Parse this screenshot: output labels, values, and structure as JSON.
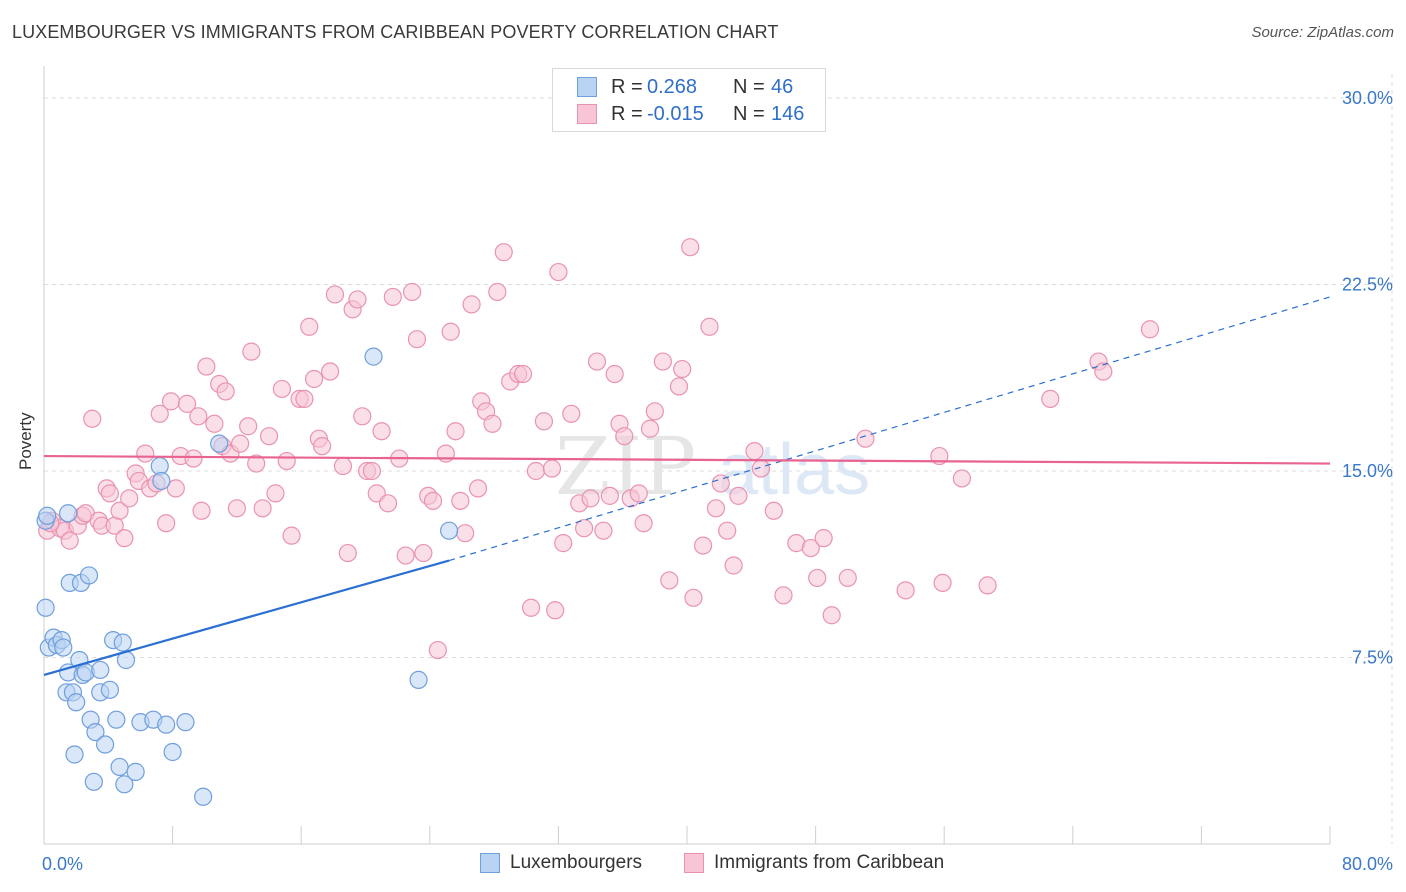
{
  "header": {
    "title": "LUXEMBOURGER VS IMMIGRANTS FROM CARIBBEAN POVERTY CORRELATION CHART",
    "source": "Source: ZipAtlas.com"
  },
  "legend": {
    "rows": [
      {
        "r_label": "R =",
        "r_value": "0.268",
        "n_label": "N =",
        "n_value": "46"
      },
      {
        "r_label": "R =",
        "r_value": "-0.015",
        "n_label": "N =",
        "n_value": "146"
      }
    ]
  },
  "colors": {
    "blue_fill": "#b9d3f3",
    "blue_stroke": "#6f9fdc",
    "blue_line": "#2a6fd1",
    "pink_fill": "#f7c5d5",
    "pink_stroke": "#e993b0",
    "pink_line": "#e8638f",
    "axis_text": "#3a78c8",
    "grid": "#dcdcdc"
  },
  "watermark": {
    "zip": "ZIP",
    "atlas": "atlas"
  },
  "chart_data": {
    "type": "scatter",
    "title": "LUXEMBOURGER VS IMMIGRANTS FROM CARIBBEAN POVERTY CORRELATION CHART",
    "xlabel": "",
    "ylabel": "Poverty",
    "xlim": [
      0,
      80
    ],
    "ylim": [
      0,
      30
    ],
    "x_tick_labels": [
      {
        "value": 0,
        "label": "0.0%"
      },
      {
        "value": 80,
        "label": "80.0%"
      }
    ],
    "y_tick_labels": [
      {
        "value": 7.5,
        "label": "7.5%"
      },
      {
        "value": 15,
        "label": "15.0%"
      },
      {
        "value": 22.5,
        "label": "22.5%"
      },
      {
        "value": 30,
        "label": "30.0%"
      }
    ],
    "series": [
      {
        "name": "Luxembourgers",
        "r": 0.268,
        "n": 46,
        "trend": {
          "x0": 0,
          "y0": 6.8,
          "x1": 25.2,
          "y1": 11.4,
          "dash_x1": 80,
          "dash_y1": 22.0
        },
        "points": [
          [
            0.1,
            13.0
          ],
          [
            0.3,
            7.9
          ],
          [
            0.6,
            8.3
          ],
          [
            0.8,
            8.0
          ],
          [
            1.1,
            8.2
          ],
          [
            1.2,
            7.9
          ],
          [
            1.4,
            6.1
          ],
          [
            1.5,
            6.9
          ],
          [
            1.5,
            13.3
          ],
          [
            1.6,
            10.5
          ],
          [
            1.8,
            6.1
          ],
          [
            1.9,
            3.6
          ],
          [
            2.0,
            5.7
          ],
          [
            2.2,
            7.4
          ],
          [
            2.3,
            10.5
          ],
          [
            2.4,
            6.8
          ],
          [
            2.6,
            6.9
          ],
          [
            2.8,
            10.8
          ],
          [
            2.9,
            5.0
          ],
          [
            3.1,
            2.5
          ],
          [
            3.2,
            4.5
          ],
          [
            3.5,
            7.0
          ],
          [
            3.5,
            6.1
          ],
          [
            3.8,
            4.0
          ],
          [
            4.1,
            6.2
          ],
          [
            4.3,
            8.2
          ],
          [
            4.5,
            5.0
          ],
          [
            4.7,
            3.1
          ],
          [
            4.9,
            8.1
          ],
          [
            5.0,
            2.4
          ],
          [
            5.1,
            7.4
          ],
          [
            5.7,
            2.9
          ],
          [
            6.0,
            4.9
          ],
          [
            6.8,
            5.0
          ],
          [
            7.2,
            15.2
          ],
          [
            7.3,
            14.6
          ],
          [
            7.6,
            4.8
          ],
          [
            8.0,
            3.7
          ],
          [
            8.8,
            4.9
          ],
          [
            9.9,
            1.9
          ],
          [
            10.9,
            16.1
          ],
          [
            20.5,
            19.6
          ],
          [
            23.3,
            6.6
          ],
          [
            25.2,
            12.6
          ],
          [
            0.1,
            9.5
          ],
          [
            0.2,
            13.2
          ]
        ]
      },
      {
        "name": "Immigrants from Caribbean",
        "r": -0.015,
        "n": 146,
        "trend": {
          "x0": 0,
          "y0": 15.6,
          "x1": 80,
          "y1": 15.3
        },
        "points": [
          [
            0.2,
            12.6
          ],
          [
            0.5,
            13.0
          ],
          [
            1.0,
            12.7
          ],
          [
            1.3,
            12.6
          ],
          [
            1.6,
            12.2
          ],
          [
            2.1,
            12.8
          ],
          [
            2.4,
            13.2
          ],
          [
            2.6,
            13.3
          ],
          [
            3.0,
            17.1
          ],
          [
            3.4,
            13.0
          ],
          [
            3.6,
            12.8
          ],
          [
            3.9,
            14.3
          ],
          [
            4.1,
            14.1
          ],
          [
            4.4,
            12.8
          ],
          [
            4.7,
            13.4
          ],
          [
            5.0,
            12.3
          ],
          [
            5.3,
            13.9
          ],
          [
            5.7,
            14.9
          ],
          [
            5.9,
            14.6
          ],
          [
            6.3,
            15.7
          ],
          [
            6.6,
            14.3
          ],
          [
            7.0,
            14.5
          ],
          [
            7.2,
            17.3
          ],
          [
            7.6,
            12.9
          ],
          [
            7.9,
            17.8
          ],
          [
            8.2,
            14.3
          ],
          [
            8.5,
            15.6
          ],
          [
            8.9,
            17.7
          ],
          [
            9.3,
            15.5
          ],
          [
            9.6,
            17.2
          ],
          [
            9.8,
            13.4
          ],
          [
            10.1,
            19.2
          ],
          [
            10.6,
            16.9
          ],
          [
            10.9,
            18.5
          ],
          [
            11.1,
            16.0
          ],
          [
            11.3,
            18.2
          ],
          [
            11.6,
            15.7
          ],
          [
            12.0,
            13.5
          ],
          [
            12.2,
            16.1
          ],
          [
            12.7,
            16.8
          ],
          [
            12.9,
            19.8
          ],
          [
            13.2,
            15.3
          ],
          [
            13.6,
            13.5
          ],
          [
            14.0,
            16.4
          ],
          [
            14.4,
            14.1
          ],
          [
            14.8,
            18.3
          ],
          [
            15.1,
            15.4
          ],
          [
            15.4,
            12.4
          ],
          [
            15.9,
            17.9
          ],
          [
            16.2,
            17.9
          ],
          [
            16.5,
            20.8
          ],
          [
            16.8,
            18.7
          ],
          [
            17.1,
            16.3
          ],
          [
            17.3,
            16.0
          ],
          [
            17.8,
            19.0
          ],
          [
            18.1,
            22.1
          ],
          [
            18.6,
            15.2
          ],
          [
            18.9,
            11.7
          ],
          [
            19.2,
            21.5
          ],
          [
            19.5,
            21.9
          ],
          [
            19.8,
            17.2
          ],
          [
            20.1,
            15.0
          ],
          [
            20.4,
            15.0
          ],
          [
            20.7,
            14.1
          ],
          [
            21.0,
            16.6
          ],
          [
            21.4,
            13.7
          ],
          [
            21.7,
            22.0
          ],
          [
            22.1,
            15.5
          ],
          [
            22.5,
            11.6
          ],
          [
            22.9,
            22.2
          ],
          [
            23.2,
            20.3
          ],
          [
            23.6,
            11.7
          ],
          [
            23.9,
            14.0
          ],
          [
            24.2,
            13.8
          ],
          [
            24.5,
            7.8
          ],
          [
            25.0,
            15.7
          ],
          [
            25.3,
            20.6
          ],
          [
            25.6,
            16.6
          ],
          [
            25.9,
            13.8
          ],
          [
            26.2,
            12.5
          ],
          [
            26.6,
            21.7
          ],
          [
            27.0,
            14.3
          ],
          [
            27.2,
            17.8
          ],
          [
            27.5,
            17.4
          ],
          [
            27.9,
            16.9
          ],
          [
            28.2,
            22.2
          ],
          [
            28.6,
            23.8
          ],
          [
            29.0,
            18.6
          ],
          [
            29.5,
            18.9
          ],
          [
            29.8,
            18.9
          ],
          [
            30.3,
            9.5
          ],
          [
            30.6,
            15.0
          ],
          [
            31.1,
            17.0
          ],
          [
            31.6,
            15.1
          ],
          [
            31.8,
            9.4
          ],
          [
            32.0,
            23.0
          ],
          [
            32.3,
            12.1
          ],
          [
            32.8,
            17.3
          ],
          [
            33.3,
            13.7
          ],
          [
            33.6,
            12.7
          ],
          [
            34.0,
            13.9
          ],
          [
            34.4,
            19.4
          ],
          [
            34.8,
            12.6
          ],
          [
            35.2,
            14.0
          ],
          [
            35.5,
            18.9
          ],
          [
            35.8,
            16.9
          ],
          [
            36.1,
            16.4
          ],
          [
            36.5,
            13.9
          ],
          [
            37.0,
            14.1
          ],
          [
            37.3,
            12.9
          ],
          [
            37.7,
            16.7
          ],
          [
            38.0,
            17.4
          ],
          [
            38.5,
            19.4
          ],
          [
            38.9,
            10.6
          ],
          [
            39.5,
            18.4
          ],
          [
            39.7,
            19.1
          ],
          [
            40.2,
            24.0
          ],
          [
            40.4,
            9.9
          ],
          [
            41.0,
            12.0
          ],
          [
            41.4,
            20.8
          ],
          [
            41.8,
            13.5
          ],
          [
            42.1,
            14.5
          ],
          [
            42.5,
            12.6
          ],
          [
            42.9,
            11.2
          ],
          [
            43.2,
            14.0
          ],
          [
            44.2,
            15.8
          ],
          [
            44.6,
            15.1
          ],
          [
            45.4,
            13.4
          ],
          [
            46.0,
            10.0
          ],
          [
            46.8,
            12.1
          ],
          [
            47.7,
            11.9
          ],
          [
            48.1,
            10.7
          ],
          [
            48.5,
            12.3
          ],
          [
            49.0,
            9.2
          ],
          [
            50.0,
            10.7
          ],
          [
            51.1,
            16.3
          ],
          [
            53.6,
            10.2
          ],
          [
            55.7,
            15.6
          ],
          [
            55.9,
            10.5
          ],
          [
            57.1,
            14.7
          ],
          [
            58.7,
            10.4
          ],
          [
            62.6,
            17.9
          ],
          [
            65.6,
            19.4
          ],
          [
            65.9,
            19.0
          ],
          [
            68.8,
            20.7
          ],
          [
            0.4,
            12.9
          ]
        ]
      }
    ]
  },
  "bottom_legend": {
    "items": [
      "Luxembourgers",
      "Immigrants from Caribbean"
    ]
  }
}
